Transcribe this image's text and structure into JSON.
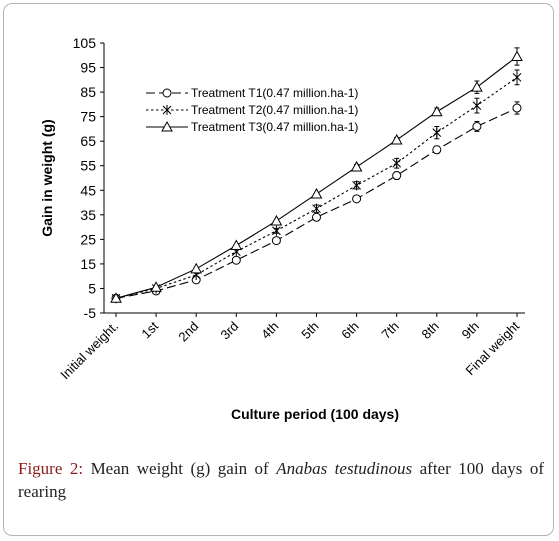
{
  "chart_data": {
    "type": "line",
    "title": "",
    "xlabel": "Culture period (100 days)",
    "ylabel": "Gain in weight (g)",
    "ylim": [
      -5,
      105
    ],
    "yticks": [
      -5,
      5,
      15,
      25,
      35,
      45,
      55,
      65,
      75,
      85,
      95,
      105
    ],
    "categories": [
      "Initial weight.",
      "1st",
      "2nd",
      "3rd",
      "4th",
      "5th",
      "6th",
      "7th",
      "8th",
      "9th",
      "Final weight"
    ],
    "grid": false,
    "legend_position": "top-left",
    "series": [
      {
        "name": "Treatment T1(0.47 million.ha-1)",
        "marker": "circle",
        "dash": "long-dash",
        "values": [
          1,
          4,
          8.5,
          16.5,
          24.5,
          34,
          41.5,
          51,
          61.5,
          71,
          78.5
        ],
        "errors": [
          0,
          0,
          0,
          0,
          0,
          1,
          1,
          1.5,
          1.5,
          2,
          2.5
        ]
      },
      {
        "name": "Treatment T2(0.47 million.ha-1)",
        "marker": "star",
        "dash": "dotted",
        "values": [
          1,
          5,
          10.5,
          20,
          28.5,
          37.5,
          47,
          56,
          68.5,
          79.5,
          91
        ],
        "errors": [
          0,
          0,
          0,
          0,
          1,
          1.5,
          1.5,
          2,
          2.5,
          3,
          3
        ]
      },
      {
        "name": "Treatment T3(0.47 million.ha-1)",
        "marker": "triangle",
        "dash": "solid",
        "values": [
          1,
          5.5,
          13,
          22.5,
          32.5,
          43.5,
          54.5,
          65.5,
          77,
          87,
          99.5
        ],
        "errors": [
          0,
          0,
          0,
          0,
          0,
          0,
          1,
          1,
          1.5,
          2.5,
          3.5
        ]
      }
    ]
  },
  "caption": {
    "label": "Figure 2:",
    "text_before": " Mean weight (g) gain of ",
    "species": "Anabas testudinous",
    "text_after": " after 100 days of rearing"
  }
}
